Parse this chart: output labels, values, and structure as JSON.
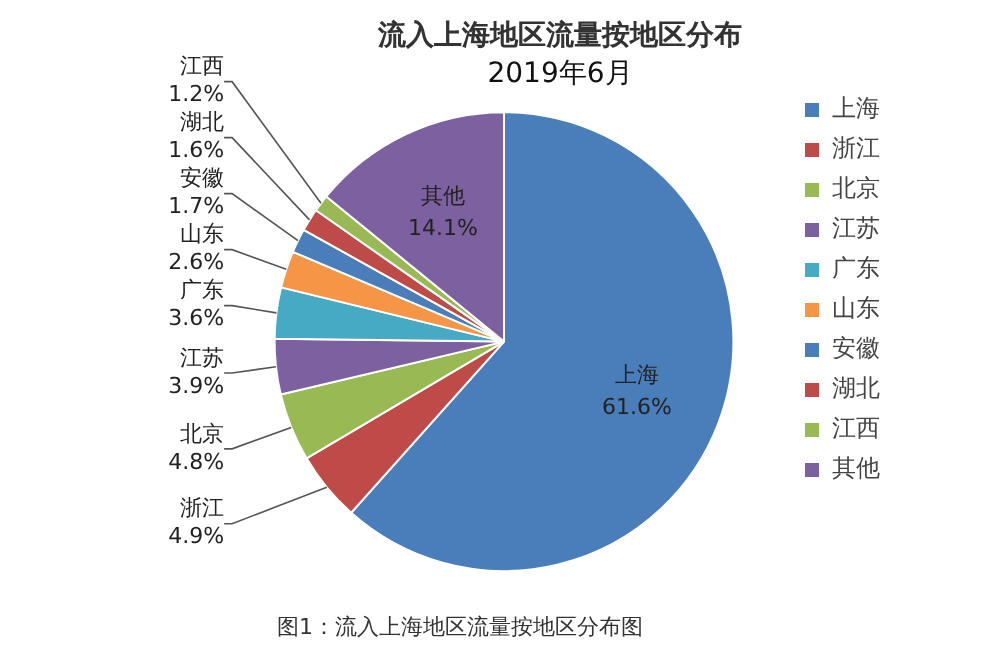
{
  "chart_data": {
    "type": "pie",
    "title": "流入上海地区流量按地区分布",
    "subtitle": "2019年6月",
    "categories": [
      "上海",
      "浙江",
      "北京",
      "江苏",
      "广东",
      "山东",
      "安徽",
      "湖北",
      "江西",
      "其他"
    ],
    "values": [
      61.6,
      4.9,
      4.8,
      3.9,
      3.6,
      2.6,
      1.7,
      1.6,
      1.2,
      14.1
    ],
    "value_labels": [
      "61.6%",
      "4.9%",
      "4.8%",
      "3.9%",
      "3.6%",
      "2.6%",
      "1.7%",
      "1.6%",
      "1.2%",
      "14.1%"
    ],
    "colors": [
      "#4a7ebb",
      "#be4b48",
      "#98b954",
      "#7d60a0",
      "#46aac5",
      "#f69545",
      "#4a7ebb",
      "#be4b48",
      "#98b954",
      "#7d60a0"
    ],
    "legend": "right",
    "annotations": [
      "图1：流入上海地区流量按地区分布图"
    ]
  }
}
